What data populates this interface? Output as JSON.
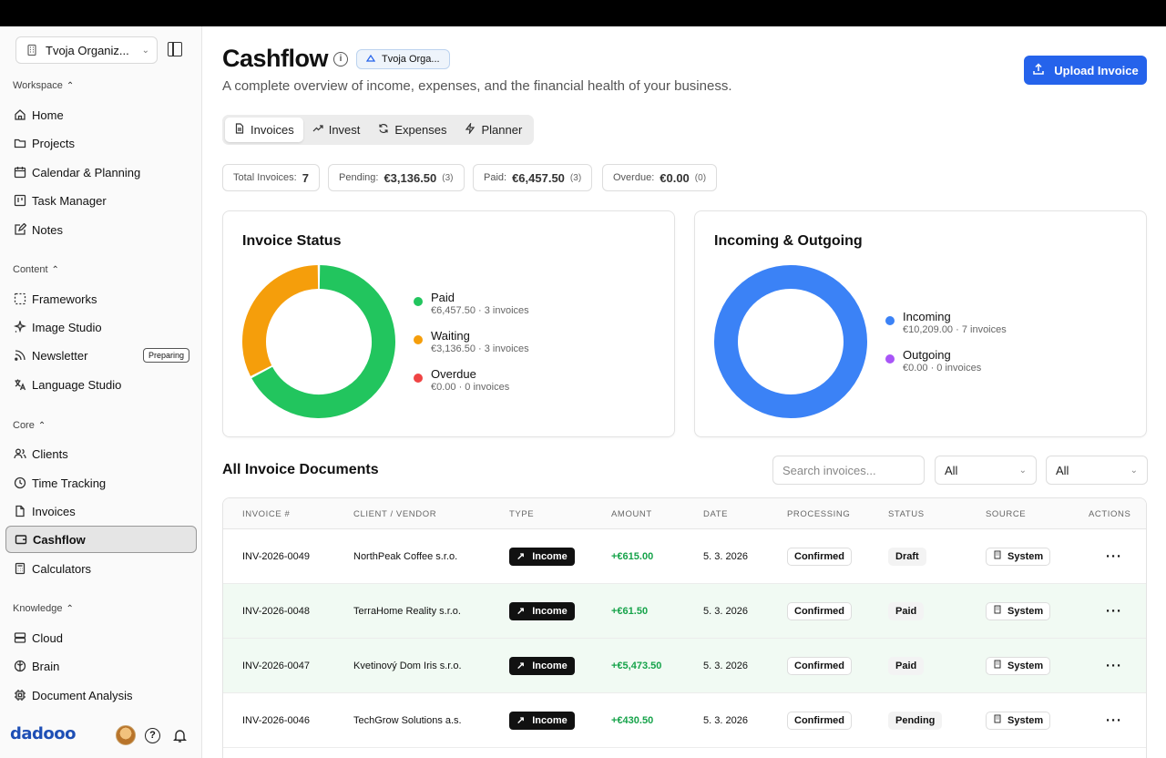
{
  "sidebar": {
    "org_name": "Tvoja Organiz...",
    "sections": {
      "workspace": "Workspace",
      "content": "Content",
      "core": "Core",
      "knowledge": "Knowledge"
    },
    "items": {
      "home": "Home",
      "projects": "Projects",
      "calendar": "Calendar & Planning",
      "tasks": "Task Manager",
      "notes": "Notes",
      "frameworks": "Frameworks",
      "image_studio": "Image Studio",
      "newsletter": "Newsletter",
      "newsletter_badge": "Preparing",
      "language_studio": "Language Studio",
      "clients": "Clients",
      "time_tracking": "Time Tracking",
      "invoices": "Invoices",
      "cashflow": "Cashflow",
      "calculators": "Calculators",
      "cloud": "Cloud",
      "brain": "Brain",
      "document_analysis": "Document Analysis"
    },
    "brand": "dadooo"
  },
  "header": {
    "title": "Cashflow",
    "org_chip": "Tvoja Orga...",
    "subtitle": "A complete overview of income, expenses, and the financial health of your business.",
    "upload_label": "Upload Invoice"
  },
  "tabs": [
    "Invoices",
    "Invest",
    "Expenses",
    "Planner"
  ],
  "stats": {
    "total_label": "Total Invoices:",
    "total_value": "7",
    "pending_label": "Pending:",
    "pending_value": "€3,136.50",
    "pending_count": "(3)",
    "paid_label": "Paid:",
    "paid_value": "€6,457.50",
    "paid_count": "(3)",
    "overdue_label": "Overdue:",
    "overdue_value": "€0.00",
    "overdue_count": "(0)"
  },
  "invoice_status": {
    "title": "Invoice Status",
    "legend": [
      {
        "name": "Paid",
        "sub": "€6,457.50 · 3 invoices"
      },
      {
        "name": "Waiting",
        "sub": "€3,136.50 · 3 invoices"
      },
      {
        "name": "Overdue",
        "sub": "€0.00 · 0 invoices"
      }
    ]
  },
  "flow": {
    "title": "Incoming & Outgoing",
    "legend": [
      {
        "name": "Incoming",
        "sub": "€10,209.00 · 7 invoices"
      },
      {
        "name": "Outgoing",
        "sub": "€0.00 · 0 invoices"
      }
    ]
  },
  "chart_data": [
    {
      "type": "pie",
      "title": "Invoice Status",
      "categories": [
        "Paid",
        "Waiting",
        "Overdue"
      ],
      "values": [
        6457.5,
        3136.5,
        0
      ],
      "colors": [
        "#22c55e",
        "#f59e0b",
        "#ef4444"
      ]
    },
    {
      "type": "pie",
      "title": "Incoming & Outgoing",
      "categories": [
        "Incoming",
        "Outgoing"
      ],
      "values": [
        10209.0,
        0
      ],
      "colors": [
        "#3b82f6",
        "#a855f7"
      ]
    }
  ],
  "documents": {
    "title": "All Invoice Documents",
    "search_placeholder": "Search invoices...",
    "filter1": "All",
    "filter2": "All",
    "columns": [
      "INVOICE #",
      "CLIENT / VENDOR",
      "TYPE",
      "AMOUNT",
      "DATE",
      "PROCESSING",
      "STATUS",
      "SOURCE",
      "ACTIONS"
    ],
    "rows": [
      {
        "id": "INV-2026-0049",
        "client": "NorthPeak Coffee s.r.o.",
        "type": "Income",
        "amount": "+€615.00",
        "date": "5. 3. 2026",
        "processing": "Confirmed",
        "status": "Draft",
        "source": "System"
      },
      {
        "id": "INV-2026-0048",
        "client": "TerraHome Reality s.r.o.",
        "type": "Income",
        "amount": "+€61.50",
        "date": "5. 3. 2026",
        "processing": "Confirmed",
        "status": "Paid",
        "source": "System"
      },
      {
        "id": "INV-2026-0047",
        "client": "Kvetinový Dom Iris s.r.o.",
        "type": "Income",
        "amount": "+€5,473.50",
        "date": "5. 3. 2026",
        "processing": "Confirmed",
        "status": "Paid",
        "source": "System"
      },
      {
        "id": "INV-2026-0046",
        "client": "TechGrow Solutions a.s.",
        "type": "Income",
        "amount": "+€430.50",
        "date": "5. 3. 2026",
        "processing": "Confirmed",
        "status": "Pending",
        "source": "System"
      }
    ]
  }
}
